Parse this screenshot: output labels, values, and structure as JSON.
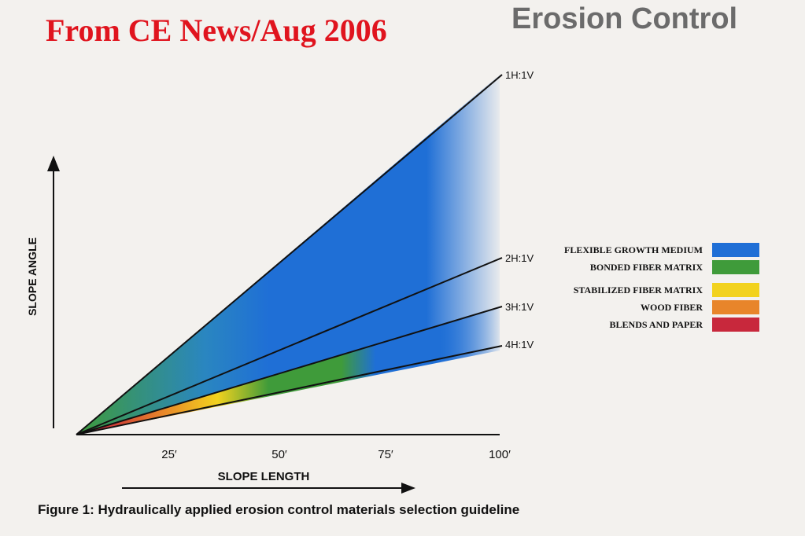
{
  "header": {
    "source": "From CE News/Aug 2006",
    "section": "Erosion Control"
  },
  "figure": {
    "y_axis_label": "SLOPE ANGLE",
    "x_axis_label": "SLOPE LENGTH",
    "x_ticks": [
      "25′",
      "50′",
      "75′",
      "100′"
    ],
    "slopes": [
      "1H:1V",
      "2H:1V",
      "3H:1V",
      "4H:1V"
    ],
    "legend": [
      {
        "label": "FLEXIBLE GROWTH MEDIUM",
        "color": "#1f6fd6"
      },
      {
        "label": "BONDED FIBER MATRIX",
        "color": "#3f9b3a"
      },
      {
        "label": "STABILIZED FIBER MATRIX",
        "color": "#f2d21e"
      },
      {
        "label": "WOOD FIBER",
        "color": "#e8852a"
      },
      {
        "label": "BLENDS AND PAPER",
        "color": "#c8283c"
      }
    ],
    "caption": "Figure 1: Hydraulically applied erosion control materials selection guideline"
  }
}
